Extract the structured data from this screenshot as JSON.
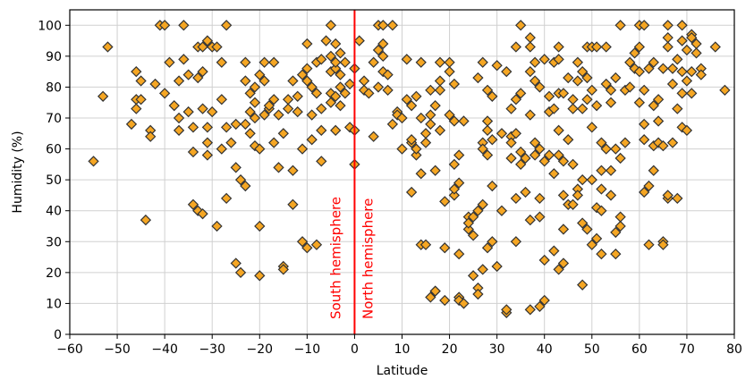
{
  "chart_data": {
    "type": "scatter",
    "xlabel": "Latitude",
    "ylabel": "Humidity (%)",
    "xlim": [
      -60,
      80
    ],
    "ylim": [
      0,
      105
    ],
    "xticks": [
      -60,
      -50,
      -40,
      -30,
      -20,
      -10,
      0,
      10,
      20,
      30,
      40,
      50,
      60,
      70,
      80
    ],
    "yticks": [
      0,
      10,
      20,
      30,
      40,
      50,
      60,
      70,
      80,
      90,
      100
    ],
    "grid": true,
    "marker": "diamond",
    "marker_fill": "#f5a623",
    "marker_edge": "#333333",
    "divider": {
      "x": 0,
      "color": "#ff0000"
    },
    "annotations": [
      {
        "text": "South hemisphere",
        "side": "left",
        "color": "#ff0000"
      },
      {
        "text": "North hemisphere",
        "side": "right",
        "color": "#ff0000"
      }
    ],
    "points": [
      [
        -55,
        56
      ],
      [
        -53,
        77
      ],
      [
        -52,
        93
      ],
      [
        -47,
        68
      ],
      [
        -46,
        76
      ],
      [
        -46,
        85
      ],
      [
        -46,
        73
      ],
      [
        -45,
        82
      ],
      [
        -45,
        76
      ],
      [
        -44,
        37
      ],
      [
        -43,
        66
      ],
      [
        -43,
        64
      ],
      [
        -42,
        81
      ],
      [
        -41,
        100
      ],
      [
        -40,
        78
      ],
      [
        -40,
        100
      ],
      [
        -39,
        88
      ],
      [
        -38,
        74
      ],
      [
        -37,
        66
      ],
      [
        -37,
        70
      ],
      [
        -37,
        82
      ],
      [
        -36,
        89
      ],
      [
        -36,
        100
      ],
      [
        -35,
        72
      ],
      [
        -35,
        84
      ],
      [
        -34,
        59
      ],
      [
        -34,
        42
      ],
      [
        -34,
        67
      ],
      [
        -33,
        93
      ],
      [
        -33,
        83
      ],
      [
        -33,
        40
      ],
      [
        -32,
        85
      ],
      [
        -32,
        73
      ],
      [
        -32,
        39
      ],
      [
        -32,
        93
      ],
      [
        -31,
        58
      ],
      [
        -31,
        62
      ],
      [
        -31,
        95
      ],
      [
        -31,
        67
      ],
      [
        -30,
        93
      ],
      [
        -30,
        72
      ],
      [
        -29,
        35
      ],
      [
        -29,
        93
      ],
      [
        -28,
        88
      ],
      [
        -28,
        76
      ],
      [
        -28,
        60
      ],
      [
        -27,
        100
      ],
      [
        -27,
        67
      ],
      [
        -27,
        44
      ],
      [
        -26,
        62
      ],
      [
        -25,
        68
      ],
      [
        -25,
        54
      ],
      [
        -25,
        23
      ],
      [
        -24,
        50
      ],
      [
        -24,
        20
      ],
      [
        -23,
        88
      ],
      [
        -23,
        48
      ],
      [
        -23,
        68
      ],
      [
        -23,
        82
      ],
      [
        -22,
        78
      ],
      [
        -22,
        65
      ],
      [
        -22,
        72
      ],
      [
        -21,
        80
      ],
      [
        -21,
        70
      ],
      [
        -21,
        75
      ],
      [
        -21,
        61
      ],
      [
        -20,
        19
      ],
      [
        -20,
        35
      ],
      [
        -20,
        60
      ],
      [
        -20,
        84
      ],
      [
        -19,
        71
      ],
      [
        -19,
        82
      ],
      [
        -19,
        88
      ],
      [
        -18,
        73
      ],
      [
        -18,
        74
      ],
      [
        -17,
        76
      ],
      [
        -17,
        88
      ],
      [
        -17,
        62
      ],
      [
        -16,
        71
      ],
      [
        -16,
        54
      ],
      [
        -15,
        22
      ],
      [
        -15,
        21
      ],
      [
        -15,
        65
      ],
      [
        -14,
        73
      ],
      [
        -14,
        76
      ],
      [
        -13,
        82
      ],
      [
        -13,
        42
      ],
      [
        -13,
        53
      ],
      [
        -12,
        77
      ],
      [
        -12,
        72
      ],
      [
        -11,
        30
      ],
      [
        -11,
        60
      ],
      [
        -11,
        84
      ],
      [
        -10,
        86
      ],
      [
        -10,
        28
      ],
      [
        -10,
        94
      ],
      [
        -10,
        82
      ],
      [
        -9,
        80
      ],
      [
        -9,
        71
      ],
      [
        -9,
        63
      ],
      [
        -8,
        29
      ],
      [
        -8,
        78
      ],
      [
        -8,
        88
      ],
      [
        -7,
        89
      ],
      [
        -7,
        56
      ],
      [
        -7,
        66
      ],
      [
        -7,
        73
      ],
      [
        -6,
        95
      ],
      [
        -5,
        100
      ],
      [
        -5,
        90
      ],
      [
        -5,
        78
      ],
      [
        -5,
        85
      ],
      [
        -5,
        75
      ],
      [
        -4,
        86
      ],
      [
        -4,
        94
      ],
      [
        -4,
        88
      ],
      [
        -4,
        77
      ],
      [
        -4,
        66
      ],
      [
        -3,
        74
      ],
      [
        -3,
        80
      ],
      [
        -3,
        91
      ],
      [
        -3,
        84
      ],
      [
        -2,
        88
      ],
      [
        -2,
        78
      ],
      [
        -1,
        81
      ],
      [
        -1,
        67
      ],
      [
        0,
        55
      ],
      [
        0,
        66
      ],
      [
        0,
        86
      ],
      [
        1,
        95
      ],
      [
        2,
        82
      ],
      [
        2,
        79
      ],
      [
        3,
        78
      ],
      [
        4,
        64
      ],
      [
        4,
        88
      ],
      [
        5,
        100
      ],
      [
        5,
        92
      ],
      [
        5,
        80
      ],
      [
        6,
        100
      ],
      [
        6,
        94
      ],
      [
        6,
        90
      ],
      [
        6,
        85
      ],
      [
        7,
        84
      ],
      [
        7,
        79
      ],
      [
        8,
        100
      ],
      [
        8,
        68
      ],
      [
        9,
        72
      ],
      [
        9,
        71
      ],
      [
        10,
        70
      ],
      [
        10,
        60
      ],
      [
        11,
        89
      ],
      [
        11,
        76
      ],
      [
        12,
        74
      ],
      [
        12,
        62
      ],
      [
        12,
        46
      ],
      [
        12,
        63
      ],
      [
        13,
        77
      ],
      [
        13,
        58
      ],
      [
        13,
        60
      ],
      [
        14,
        88
      ],
      [
        14,
        70
      ],
      [
        14,
        52
      ],
      [
        14,
        29
      ],
      [
        15,
        62
      ],
      [
        15,
        65
      ],
      [
        15,
        29
      ],
      [
        16,
        79
      ],
      [
        16,
        68
      ],
      [
        16,
        71
      ],
      [
        16,
        12
      ],
      [
        17,
        14
      ],
      [
        17,
        14
      ],
      [
        17,
        74
      ],
      [
        17,
        53
      ],
      [
        18,
        82
      ],
      [
        18,
        88
      ],
      [
        18,
        66
      ],
      [
        18,
        79
      ],
      [
        19,
        28
      ],
      [
        19,
        43
      ],
      [
        19,
        11
      ],
      [
        20,
        71
      ],
      [
        20,
        88
      ],
      [
        20,
        85
      ],
      [
        21,
        81
      ],
      [
        21,
        69
      ],
      [
        21,
        55
      ],
      [
        21,
        45
      ],
      [
        21,
        47
      ],
      [
        22,
        58
      ],
      [
        22,
        49
      ],
      [
        22,
        12
      ],
      [
        22,
        11
      ],
      [
        22,
        26
      ],
      [
        23,
        10
      ],
      [
        23,
        69
      ],
      [
        24,
        38
      ],
      [
        24,
        34
      ],
      [
        24,
        36
      ],
      [
        25,
        38
      ],
      [
        25,
        19
      ],
      [
        25,
        32
      ],
      [
        26,
        40
      ],
      [
        26,
        15
      ],
      [
        26,
        13
      ],
      [
        26,
        83
      ],
      [
        27,
        62
      ],
      [
        27,
        60
      ],
      [
        27,
        88
      ],
      [
        27,
        42
      ],
      [
        27,
        21
      ],
      [
        28,
        58
      ],
      [
        28,
        66
      ],
      [
        28,
        69
      ],
      [
        28,
        79
      ],
      [
        28,
        28
      ],
      [
        29,
        77
      ],
      [
        29,
        63
      ],
      [
        29,
        48
      ],
      [
        29,
        30
      ],
      [
        30,
        22
      ],
      [
        30,
        87
      ],
      [
        31,
        40
      ],
      [
        31,
        65
      ],
      [
        32,
        7
      ],
      [
        32,
        8
      ],
      [
        32,
        85
      ],
      [
        33,
        64
      ],
      [
        33,
        73
      ],
      [
        33,
        62
      ],
      [
        33,
        57
      ],
      [
        34,
        65
      ],
      [
        34,
        44
      ],
      [
        34,
        30
      ],
      [
        34,
        93
      ],
      [
        34,
        76
      ],
      [
        35,
        78
      ],
      [
        35,
        55
      ],
      [
        35,
        100
      ],
      [
        35,
        59
      ],
      [
        36,
        57
      ],
      [
        36,
        46
      ],
      [
        37,
        37
      ],
      [
        37,
        8
      ],
      [
        37,
        93
      ],
      [
        37,
        96
      ],
      [
        37,
        85
      ],
      [
        37,
        71
      ],
      [
        38,
        88
      ],
      [
        38,
        82
      ],
      [
        38,
        62
      ],
      [
        38,
        58
      ],
      [
        39,
        38
      ],
      [
        39,
        60
      ],
      [
        39,
        9
      ],
      [
        39,
        80
      ],
      [
        39,
        44
      ],
      [
        40,
        11
      ],
      [
        40,
        24
      ],
      [
        40,
        56
      ],
      [
        40,
        89
      ],
      [
        41,
        77
      ],
      [
        41,
        58
      ],
      [
        41,
        72
      ],
      [
        42,
        73
      ],
      [
        42,
        52
      ],
      [
        42,
        27
      ],
      [
        42,
        88
      ],
      [
        43,
        66
      ],
      [
        43,
        89
      ],
      [
        43,
        78
      ],
      [
        43,
        93
      ],
      [
        43,
        21
      ],
      [
        43,
        58
      ],
      [
        44,
        78
      ],
      [
        44,
        45
      ],
      [
        44,
        34
      ],
      [
        44,
        23
      ],
      [
        44,
        56
      ],
      [
        45,
        83
      ],
      [
        45,
        42
      ],
      [
        45,
        63
      ],
      [
        46,
        42
      ],
      [
        46,
        73
      ],
      [
        46,
        55
      ],
      [
        46,
        76
      ],
      [
        47,
        88
      ],
      [
        47,
        82
      ],
      [
        47,
        47
      ],
      [
        47,
        45
      ],
      [
        48,
        16
      ],
      [
        48,
        85
      ],
      [
        48,
        73
      ],
      [
        48,
        50
      ],
      [
        48,
        36
      ],
      [
        49,
        93
      ],
      [
        49,
        34
      ],
      [
        49,
        76
      ],
      [
        49,
        83
      ],
      [
        50,
        79
      ],
      [
        50,
        50
      ],
      [
        50,
        29
      ],
      [
        50,
        67
      ],
      [
        50,
        93
      ],
      [
        51,
        93
      ],
      [
        51,
        74
      ],
      [
        51,
        31
      ],
      [
        51,
        41
      ],
      [
        52,
        53
      ],
      [
        52,
        62
      ],
      [
        52,
        47
      ],
      [
        52,
        26
      ],
      [
        52,
        40
      ],
      [
        53,
        81
      ],
      [
        53,
        60
      ],
      [
        53,
        93
      ],
      [
        54,
        79
      ],
      [
        54,
        45
      ],
      [
        54,
        53
      ],
      [
        54,
        75
      ],
      [
        55,
        83
      ],
      [
        55,
        26
      ],
      [
        55,
        33
      ],
      [
        55,
        60
      ],
      [
        56,
        35
      ],
      [
        56,
        57
      ],
      [
        56,
        100
      ],
      [
        56,
        38
      ],
      [
        57,
        62
      ],
      [
        57,
        79
      ],
      [
        58,
        88
      ],
      [
        58,
        80
      ],
      [
        59,
        86
      ],
      [
        59,
        91
      ],
      [
        60,
        100
      ],
      [
        60,
        93
      ],
      [
        60,
        85
      ],
      [
        60,
        75
      ],
      [
        61,
        100
      ],
      [
        61,
        68
      ],
      [
        61,
        46
      ],
      [
        61,
        63
      ],
      [
        61,
        79
      ],
      [
        62,
        48
      ],
      [
        62,
        29
      ],
      [
        62,
        86
      ],
      [
        63,
        88
      ],
      [
        63,
        61
      ],
      [
        63,
        74
      ],
      [
        63,
        53
      ],
      [
        64,
        62
      ],
      [
        64,
        69
      ],
      [
        64,
        76
      ],
      [
        65,
        30
      ],
      [
        65,
        29
      ],
      [
        65,
        61
      ],
      [
        65,
        86
      ],
      [
        66,
        100
      ],
      [
        66,
        93
      ],
      [
        66,
        44
      ],
      [
        66,
        45
      ],
      [
        66,
        96
      ],
      [
        67,
        86
      ],
      [
        67,
        81
      ],
      [
        67,
        62
      ],
      [
        68,
        73
      ],
      [
        68,
        44
      ],
      [
        68,
        89
      ],
      [
        69,
        100
      ],
      [
        69,
        95
      ],
      [
        69,
        67
      ],
      [
        69,
        85
      ],
      [
        69,
        78
      ],
      [
        70,
        82
      ],
      [
        70,
        66
      ],
      [
        70,
        92
      ],
      [
        71,
        97
      ],
      [
        71,
        96
      ],
      [
        71,
        85
      ],
      [
        71,
        78
      ],
      [
        72,
        94
      ],
      [
        72,
        91
      ],
      [
        73,
        86
      ],
      [
        73,
        84
      ],
      [
        76,
        93
      ],
      [
        78,
        79
      ]
    ]
  }
}
